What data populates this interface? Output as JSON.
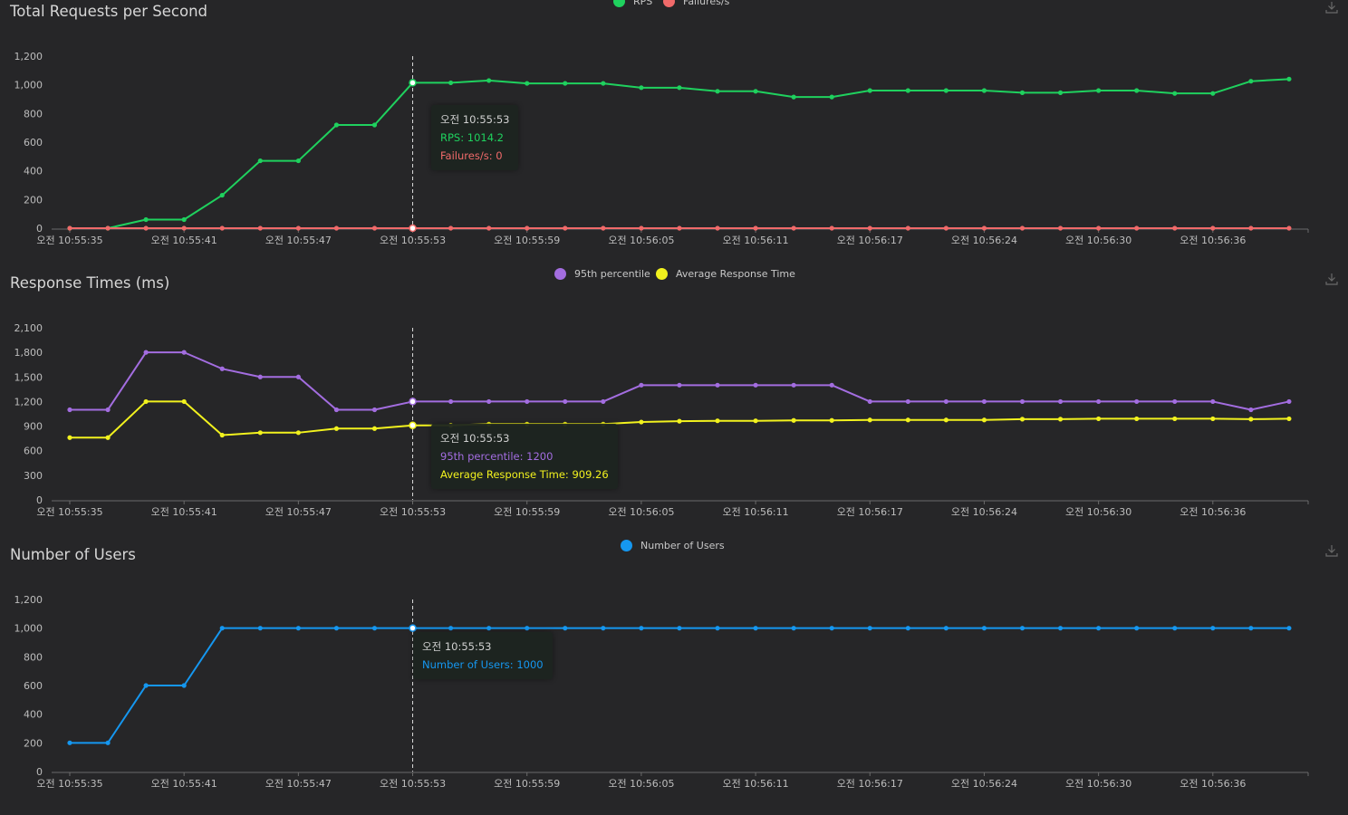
{
  "times": [
    "오전 10:55:35",
    "오전 10:55:41",
    "오전 10:55:47",
    "오전 10:55:53",
    "오전 10:55:59",
    "오전 10:56:05",
    "오전 10:56:11",
    "오전 10:56:17",
    "오전 10:56:24",
    "오전 10:56:30",
    "오전 10:56:36"
  ],
  "colors": {
    "rps": "#1fd15e",
    "failures": "#f06a6a",
    "p95": "#a36de0",
    "avg": "#f2f21e",
    "users": "#1597f0"
  },
  "rps_chart": {
    "title": "Total Requests per Second",
    "legend": [
      "RPS",
      "Failures/s"
    ],
    "tooltip": {
      "time": "오전 10:55:53",
      "line1": "RPS: 1014.2",
      "line2": "Failures/s: 0"
    }
  },
  "rt_chart": {
    "title": "Response Times (ms)",
    "legend": [
      "95th percentile",
      "Average Response Time"
    ],
    "tooltip": {
      "time": "오전 10:55:53",
      "line1": "95th percentile: 1200",
      "line2": "Average Response Time: 909.26"
    }
  },
  "users_chart": {
    "title": "Number of Users",
    "legend": [
      "Number of Users"
    ],
    "tooltip": {
      "time": "오전 10:55:53",
      "line1": "Number of Users: 1000"
    }
  },
  "chart_data": [
    {
      "type": "line",
      "title": "Total Requests per Second",
      "ylim": [
        0,
        1200
      ],
      "yticks": [
        "0",
        "200",
        "400",
        "600",
        "800",
        "1,000",
        "1,200"
      ],
      "legend_position": "top-center",
      "series": [
        {
          "name": "RPS",
          "values": [
            0,
            0,
            60,
            60,
            230,
            470,
            470,
            720,
            720,
            1014.2,
            1014.2,
            1030,
            1010,
            1010,
            1010,
            980,
            980,
            955,
            955,
            915,
            915,
            960,
            960,
            960,
            960,
            945,
            945,
            960,
            960,
            940,
            940,
            1025,
            1040
          ]
        },
        {
          "name": "Failures/s",
          "values": [
            0,
            0,
            0,
            0,
            0,
            0,
            0,
            0,
            0,
            0,
            0,
            0,
            0,
            0,
            0,
            0,
            0,
            0,
            0,
            0,
            0,
            0,
            0,
            0,
            0,
            0,
            0,
            0,
            0,
            0,
            0,
            0,
            0
          ]
        }
      ]
    },
    {
      "type": "line",
      "title": "Response Times (ms)",
      "ylim": [
        0,
        2100
      ],
      "yticks": [
        "0",
        "300",
        "600",
        "900",
        "1,200",
        "1,500",
        "1,800",
        "2,100"
      ],
      "legend_position": "top-center",
      "series": [
        {
          "name": "95th percentile",
          "values": [
            1100,
            1100,
            1800,
            1800,
            1600,
            1500,
            1500,
            1100,
            1100,
            1200,
            1200,
            1200,
            1200,
            1200,
            1200,
            1400,
            1400,
            1400,
            1400,
            1400,
            1400,
            1200,
            1200,
            1200,
            1200,
            1200,
            1200,
            1200,
            1200,
            1200,
            1200,
            1100,
            1200
          ]
        },
        {
          "name": "Average Response Time",
          "values": [
            760,
            760,
            1200,
            1200,
            790,
            820,
            820,
            870,
            870,
            909.26,
            909.26,
            925,
            925,
            925,
            925,
            950,
            960,
            965,
            965,
            970,
            970,
            975,
            975,
            975,
            975,
            985,
            985,
            990,
            990,
            990,
            990,
            985,
            990
          ]
        }
      ]
    },
    {
      "type": "line",
      "title": "Number of Users",
      "ylim": [
        0,
        1200
      ],
      "yticks": [
        "0",
        "200",
        "400",
        "600",
        "800",
        "1,000",
        "1,200"
      ],
      "legend_position": "top-center",
      "series": [
        {
          "name": "Number of Users",
          "values": [
            200,
            200,
            600,
            600,
            1000,
            1000,
            1000,
            1000,
            1000,
            1000,
            1000,
            1000,
            1000,
            1000,
            1000,
            1000,
            1000,
            1000,
            1000,
            1000,
            1000,
            1000,
            1000,
            1000,
            1000,
            1000,
            1000,
            1000,
            1000,
            1000,
            1000,
            1000,
            1000
          ]
        }
      ]
    }
  ]
}
